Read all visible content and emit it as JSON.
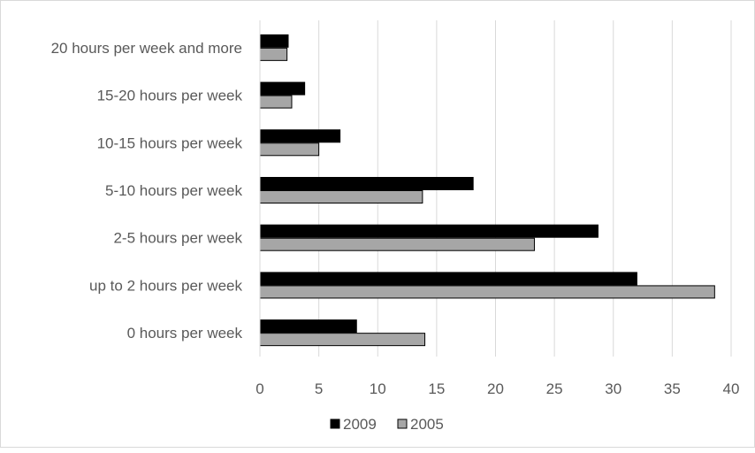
{
  "chart_data": {
    "type": "bar",
    "orientation": "horizontal",
    "categories": [
      "20 hours per week and more",
      "15-20 hours per week",
      "10-15 hours per week",
      "5-10 hours per week",
      "2-5 hours per week",
      "up to 2 hours per week",
      "0 hours per week"
    ],
    "series": [
      {
        "name": "2009",
        "color": "#000000",
        "values": [
          2.4,
          3.8,
          6.8,
          18.1,
          28.7,
          32.0,
          8.2
        ]
      },
      {
        "name": "2005",
        "color": "#a6a6a6",
        "values": [
          2.3,
          2.7,
          5.0,
          13.8,
          23.3,
          38.6,
          14.0
        ]
      }
    ],
    "xlim": [
      0,
      40
    ],
    "xticks": [
      "0",
      "5",
      "10",
      "15",
      "20",
      "25",
      "30",
      "35",
      "40"
    ],
    "grid": true,
    "legend_position": "bottom",
    "title": "",
    "xlabel": "",
    "ylabel": ""
  }
}
